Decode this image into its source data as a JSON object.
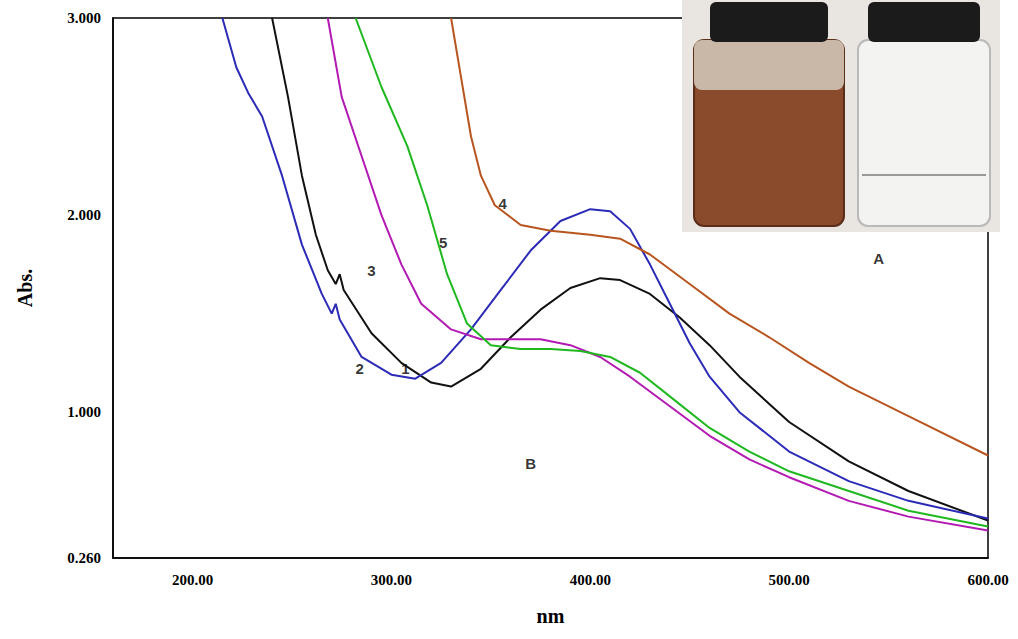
{
  "chart_data": {
    "type": "line",
    "xlabel": "nm",
    "ylabel": "Abs.",
    "xlim": [
      160,
      600
    ],
    "ylim": [
      0.26,
      3.0
    ],
    "xticks": [
      {
        "value": 200,
        "label": "200.00"
      },
      {
        "value": 300,
        "label": "300.00"
      },
      {
        "value": 400,
        "label": "400.00"
      },
      {
        "value": 500,
        "label": "500.00"
      },
      {
        "value": 600,
        "label": "600.00"
      }
    ],
    "yticks": [
      {
        "value": 0.26,
        "label": "0.260"
      },
      {
        "value": 1,
        "label": "1.000"
      },
      {
        "value": 2,
        "label": "2.000"
      },
      {
        "value": 3,
        "label": "3.000"
      }
    ],
    "grid": false,
    "series": [
      {
        "name": "1",
        "color": "#111111",
        "x": [
          240,
          248,
          255,
          262,
          268,
          272,
          274,
          276,
          290,
          305,
          320,
          330,
          345,
          360,
          375,
          390,
          405,
          415,
          430,
          445,
          460,
          475,
          500,
          530,
          560,
          600
        ],
        "values": [
          3.0,
          2.6,
          2.2,
          1.9,
          1.72,
          1.65,
          1.7,
          1.62,
          1.4,
          1.25,
          1.15,
          1.13,
          1.22,
          1.38,
          1.52,
          1.63,
          1.68,
          1.67,
          1.6,
          1.48,
          1.34,
          1.18,
          0.95,
          0.75,
          0.6,
          0.45
        ]
      },
      {
        "name": "2",
        "color": "#2b2bb8",
        "x": [
          215,
          222,
          228,
          235,
          245,
          255,
          265,
          270,
          272,
          274,
          285,
          300,
          312,
          325,
          340,
          355,
          370,
          385,
          400,
          410,
          420,
          430,
          440,
          450,
          460,
          475,
          500,
          530,
          560,
          600
        ],
        "values": [
          3.0,
          2.75,
          2.62,
          2.5,
          2.2,
          1.85,
          1.6,
          1.5,
          1.55,
          1.47,
          1.28,
          1.19,
          1.17,
          1.25,
          1.42,
          1.62,
          1.82,
          1.97,
          2.03,
          2.02,
          1.93,
          1.75,
          1.55,
          1.35,
          1.18,
          1.0,
          0.8,
          0.65,
          0.55,
          0.46
        ]
      },
      {
        "name": "3",
        "color": "#b319b3",
        "x": [
          268,
          275,
          285,
          295,
          305,
          315,
          330,
          345,
          360,
          375,
          390,
          405,
          420,
          440,
          460,
          480,
          500,
          530,
          560,
          600
        ],
        "values": [
          3.0,
          2.6,
          2.3,
          2.0,
          1.75,
          1.55,
          1.42,
          1.37,
          1.37,
          1.37,
          1.34,
          1.28,
          1.18,
          1.03,
          0.88,
          0.76,
          0.67,
          0.55,
          0.47,
          0.4
        ]
      },
      {
        "name": "4",
        "color": "#b8551e",
        "x": [
          330,
          335,
          340,
          345,
          352,
          365,
          380,
          400,
          415,
          430,
          450,
          470,
          490,
          510,
          530,
          560,
          600
        ],
        "values": [
          3.0,
          2.7,
          2.4,
          2.2,
          2.05,
          1.95,
          1.92,
          1.9,
          1.88,
          1.8,
          1.65,
          1.5,
          1.38,
          1.25,
          1.13,
          0.98,
          0.78
        ]
      },
      {
        "name": "5",
        "color": "#1fb81f",
        "x": [
          282,
          295,
          308,
          318,
          328,
          338,
          350,
          365,
          380,
          395,
          410,
          425,
          440,
          460,
          480,
          500,
          530,
          560,
          600
        ],
        "values": [
          3.0,
          2.65,
          2.35,
          2.05,
          1.7,
          1.45,
          1.34,
          1.32,
          1.32,
          1.31,
          1.28,
          1.2,
          1.08,
          0.92,
          0.8,
          0.7,
          0.6,
          0.5,
          0.42
        ]
      }
    ],
    "annotations": [
      {
        "text": "1",
        "x": 307,
        "y": 1.22
      },
      {
        "text": "2",
        "x": 284,
        "y": 1.22
      },
      {
        "text": "3",
        "x": 290,
        "y": 1.72
      },
      {
        "text": "4",
        "x": 356,
        "y": 2.06
      },
      {
        "text": "5",
        "x": 326,
        "y": 1.86
      },
      {
        "text": "A",
        "x": 545,
        "y": 1.78
      },
      {
        "text": "B",
        "x": 370,
        "y": 0.74
      }
    ]
  }
}
